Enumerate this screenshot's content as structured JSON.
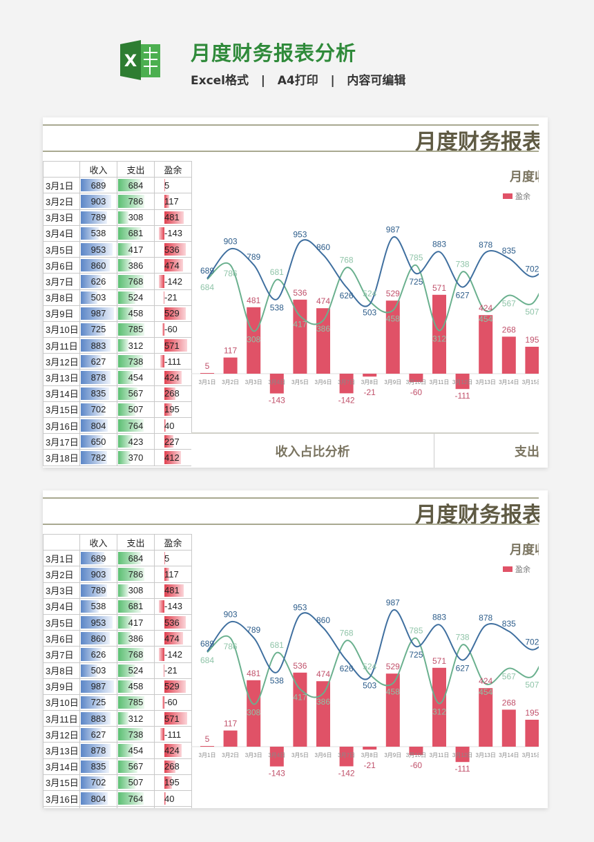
{
  "header": {
    "title": "月度财务报表分析",
    "subtitle": "Excel格式   |   A4打印   |   内容可编辑",
    "logo_letter": "X"
  },
  "report": {
    "title": "月度财务报表",
    "chart_title": "月度收",
    "legend_label": "盈余",
    "columns": [
      "收入",
      "支出",
      "盈余"
    ],
    "bottom_left": "收入占比分析",
    "bottom_right": "支出"
  },
  "colors": {
    "income": "#3f6f9f",
    "expense": "#6ab08e",
    "surplus": "#e05267"
  },
  "rows": [
    {
      "date": "3月1日",
      "income": 689,
      "expense": 684,
      "surplus": 5
    },
    {
      "date": "3月2日",
      "income": 903,
      "expense": 786,
      "surplus": 117
    },
    {
      "date": "3月3日",
      "income": 789,
      "expense": 308,
      "surplus": 481
    },
    {
      "date": "3月4日",
      "income": 538,
      "expense": 681,
      "surplus": -143
    },
    {
      "date": "3月5日",
      "income": 953,
      "expense": 417,
      "surplus": 536
    },
    {
      "date": "3月6日",
      "income": 860,
      "expense": 386,
      "surplus": 474
    },
    {
      "date": "3月7日",
      "income": 626,
      "expense": 768,
      "surplus": -142
    },
    {
      "date": "3月8日",
      "income": 503,
      "expense": 524,
      "surplus": -21
    },
    {
      "date": "3月9日",
      "income": 987,
      "expense": 458,
      "surplus": 529
    },
    {
      "date": "3月10日",
      "income": 725,
      "expense": 785,
      "surplus": -60
    },
    {
      "date": "3月11日",
      "income": 883,
      "expense": 312,
      "surplus": 571
    },
    {
      "date": "3月12日",
      "income": 627,
      "expense": 738,
      "surplus": -111
    },
    {
      "date": "3月13日",
      "income": 878,
      "expense": 454,
      "surplus": 424
    },
    {
      "date": "3月14日",
      "income": 835,
      "expense": 567,
      "surplus": 268
    },
    {
      "date": "3月15日",
      "income": 702,
      "expense": 507,
      "surplus": 195
    },
    {
      "date": "3月16日",
      "income": 804,
      "expense": 764,
      "surplus": 40
    },
    {
      "date": "3月17日",
      "income": 650,
      "expense": 423,
      "surplus": 227
    },
    {
      "date": "3月18日",
      "income": 782,
      "expense": 370,
      "surplus": 412
    }
  ]
}
